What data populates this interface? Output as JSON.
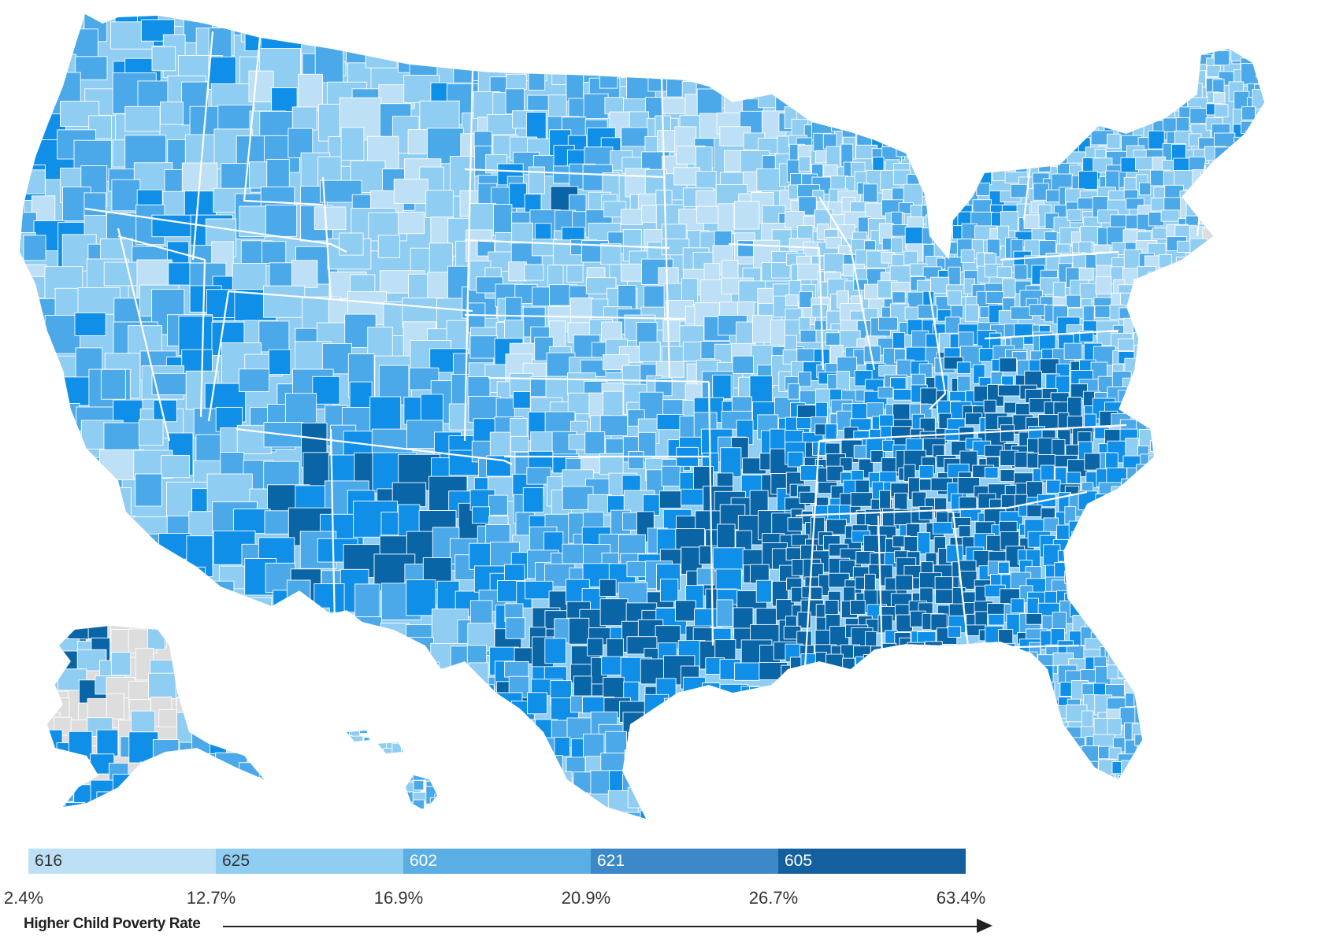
{
  "map": {
    "bin_colors": [
      "#bde0f6",
      "#90cdf2",
      "#4ba9ea",
      "#0f8fe8",
      "#0a65a6"
    ],
    "no_data_color": "#dddddd"
  },
  "legend": {
    "bins": [
      {
        "count": "616",
        "color": "#bde0f6",
        "text_color": "#333333"
      },
      {
        "count": "625",
        "color": "#90cdf2",
        "text_color": "#333333"
      },
      {
        "count": "602",
        "color": "#5aaee3",
        "text_color": "#ffffff"
      },
      {
        "count": "621",
        "color": "#3c88c9",
        "text_color": "#ffffff"
      },
      {
        "count": "605",
        "color": "#14609f",
        "text_color": "#ffffff"
      }
    ],
    "breaks": [
      "2.4%",
      "12.7%",
      "16.9%",
      "20.9%",
      "26.7%",
      "63.4%"
    ],
    "arrow_label": "Higher Child Poverty Rate"
  }
}
